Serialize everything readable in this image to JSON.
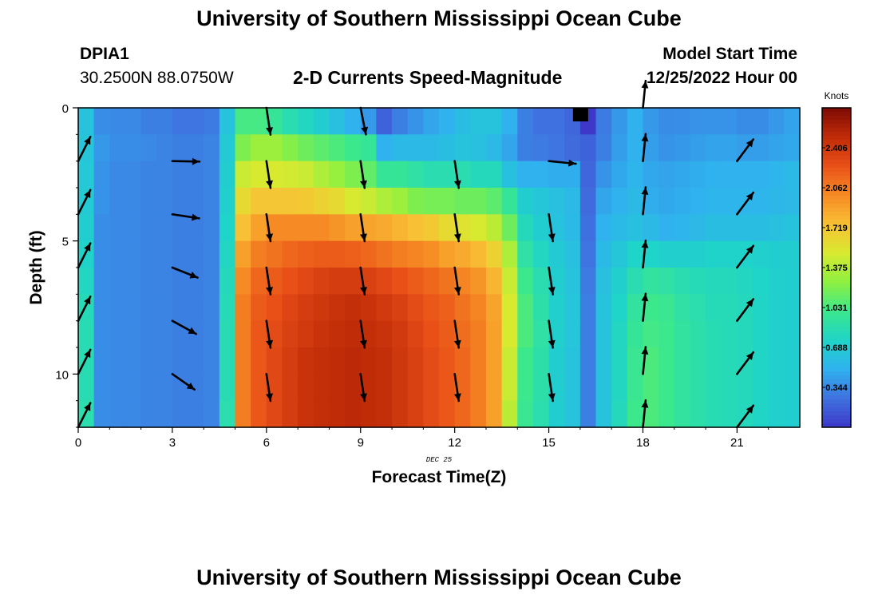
{
  "header": {
    "title": "University of Southern Mississippi Ocean Cube",
    "station_id": "DPIA1",
    "coordinates": "30.2500N  88.0750W",
    "subtitle": "2-D Currents Speed-Magnitude",
    "model_start_label": "Model Start Time",
    "model_start_value": "12/25/2022 Hour 00"
  },
  "footer": {
    "title": "University of Southern Mississippi Ocean Cube"
  },
  "chart_data": {
    "type": "heatmap",
    "xlabel": "Forecast Time(Z)",
    "ylabel": "Depth (ft)",
    "x_ticks": [
      0,
      3,
      6,
      9,
      12,
      15,
      18,
      21
    ],
    "y_ticks": [
      0,
      5,
      10
    ],
    "xlim": [
      0,
      23
    ],
    "ylim": [
      0,
      12
    ],
    "y_inverted": true,
    "date_label": "DEC 25",
    "colorbar": {
      "label": "Knots",
      "ticks": [
        2.406,
        2.062,
        1.719,
        1.375,
        1.031,
        0.688,
        0.344
      ],
      "range": [
        0,
        2.75
      ],
      "colors": [
        "#3d38c8",
        "#3f72e0",
        "#2fb2ee",
        "#1fd4c8",
        "#3ce88c",
        "#8ef040",
        "#d8ea30",
        "#f8c034",
        "#f68a24",
        "#e85018",
        "#c02c08",
        "#7c0a04"
      ]
    },
    "time_hours": [
      0,
      0.5,
      1,
      1.5,
      2,
      2.5,
      3,
      3.5,
      4,
      4.5,
      5,
      5.5,
      6,
      6.5,
      7,
      7.5,
      8,
      8.5,
      9,
      9.5,
      10,
      10.5,
      11,
      11.5,
      12,
      12.5,
      13,
      13.5,
      14,
      14.5,
      15,
      15.5,
      16,
      16.5,
      17,
      17.5,
      18,
      18.5,
      19,
      19.5,
      20,
      20.5,
      21,
      21.5,
      22,
      22.5
    ],
    "depth_levels_ft": [
      0,
      2,
      4,
      6,
      8,
      10,
      12
    ],
    "speed_knots": [
      [
        0.62,
        0.36,
        0.34,
        0.34,
        0.3,
        0.3,
        0.26,
        0.26,
        0.28,
        0.62,
        1.03,
        1.03,
        0.95,
        0.85,
        0.78,
        0.7,
        0.6,
        0.5,
        0.4,
        0.18,
        0.3,
        0.38,
        0.45,
        0.5,
        0.58,
        0.62,
        0.62,
        0.5,
        0.3,
        0.25,
        0.25,
        0.2,
        0.0,
        0.28,
        0.4,
        0.5,
        0.4,
        0.35,
        0.36,
        0.38,
        0.38,
        0.38,
        0.35,
        0.35,
        0.4,
        0.44
      ],
      [
        0.64,
        0.4,
        0.36,
        0.36,
        0.34,
        0.32,
        0.3,
        0.3,
        0.32,
        0.68,
        1.2,
        1.3,
        1.3,
        1.22,
        1.15,
        1.1,
        1.05,
        1.0,
        0.95,
        0.5,
        0.55,
        0.55,
        0.55,
        0.58,
        0.62,
        0.6,
        0.55,
        0.45,
        0.3,
        0.28,
        0.26,
        0.22,
        0.18,
        0.3,
        0.42,
        0.5,
        0.42,
        0.38,
        0.4,
        0.42,
        0.44,
        0.44,
        0.42,
        0.42,
        0.44,
        0.46
      ],
      [
        0.66,
        0.38,
        0.34,
        0.34,
        0.32,
        0.32,
        0.3,
        0.3,
        0.32,
        0.7,
        1.45,
        1.5,
        1.5,
        1.48,
        1.45,
        1.35,
        1.28,
        1.2,
        1.12,
        0.95,
        0.95,
        0.9,
        0.85,
        0.85,
        0.85,
        0.8,
        0.8,
        0.6,
        0.5,
        0.5,
        0.48,
        0.48,
        0.2,
        0.38,
        0.46,
        0.52,
        0.46,
        0.44,
        0.46,
        0.48,
        0.5,
        0.5,
        0.5,
        0.5,
        0.52,
        0.55
      ],
      [
        0.68,
        0.38,
        0.34,
        0.34,
        0.32,
        0.32,
        0.3,
        0.3,
        0.32,
        0.72,
        1.6,
        1.72,
        1.72,
        1.72,
        1.7,
        1.65,
        1.6,
        1.5,
        1.45,
        1.35,
        1.3,
        1.2,
        1.18,
        1.18,
        1.15,
        1.15,
        1.1,
        0.95,
        0.7,
        0.65,
        0.6,
        0.55,
        0.22,
        0.45,
        0.5,
        0.55,
        0.48,
        0.46,
        0.48,
        0.5,
        0.52,
        0.52,
        0.52,
        0.52,
        0.54,
        0.55
      ],
      [
        0.7,
        0.36,
        0.34,
        0.34,
        0.32,
        0.32,
        0.3,
        0.3,
        0.32,
        0.75,
        1.75,
        1.9,
        2.0,
        2.0,
        2.0,
        2.0,
        1.95,
        1.9,
        1.88,
        1.85,
        1.8,
        1.75,
        1.7,
        1.6,
        1.55,
        1.5,
        1.4,
        1.15,
        0.8,
        0.7,
        0.62,
        0.56,
        0.24,
        0.5,
        0.56,
        0.6,
        0.55,
        0.5,
        0.52,
        0.55,
        0.58,
        0.58,
        0.58,
        0.58,
        0.6,
        0.62
      ],
      [
        0.74,
        0.36,
        0.34,
        0.34,
        0.32,
        0.32,
        0.3,
        0.3,
        0.32,
        0.78,
        1.9,
        2.05,
        2.1,
        2.15,
        2.18,
        2.2,
        2.2,
        2.18,
        2.15,
        2.1,
        2.05,
        2.02,
        1.98,
        1.9,
        1.85,
        1.78,
        1.65,
        1.35,
        0.9,
        0.78,
        0.68,
        0.6,
        0.26,
        0.56,
        0.65,
        0.75,
        0.75,
        0.72,
        0.72,
        0.72,
        0.74,
        0.74,
        0.74,
        0.72,
        0.7,
        0.7
      ],
      [
        0.78,
        0.36,
        0.34,
        0.34,
        0.32,
        0.32,
        0.3,
        0.3,
        0.32,
        0.8,
        2.0,
        2.15,
        2.2,
        2.25,
        2.3,
        2.35,
        2.38,
        2.38,
        2.35,
        2.3,
        2.25,
        2.2,
        2.15,
        2.1,
        2.02,
        1.95,
        1.8,
        1.45,
        1.0,
        0.85,
        0.7,
        0.62,
        0.28,
        0.6,
        0.72,
        0.85,
        0.92,
        0.9,
        0.85,
        0.82,
        0.8,
        0.8,
        0.78,
        0.75,
        0.72,
        0.7
      ],
      [
        0.82,
        0.36,
        0.34,
        0.34,
        0.32,
        0.32,
        0.3,
        0.3,
        0.32,
        0.82,
        2.05,
        2.2,
        2.25,
        2.32,
        2.38,
        2.42,
        2.45,
        2.48,
        2.45,
        2.4,
        2.35,
        2.28,
        2.22,
        2.18,
        2.1,
        2.02,
        1.88,
        1.5,
        1.05,
        0.88,
        0.72,
        0.64,
        0.3,
        0.62,
        0.75,
        0.92,
        1.0,
        0.98,
        0.9,
        0.86,
        0.82,
        0.82,
        0.8,
        0.76,
        0.72,
        0.7
      ],
      [
        0.84,
        0.36,
        0.34,
        0.34,
        0.32,
        0.32,
        0.3,
        0.3,
        0.32,
        0.84,
        2.05,
        2.22,
        2.28,
        2.35,
        2.4,
        2.45,
        2.48,
        2.5,
        2.48,
        2.45,
        2.4,
        2.32,
        2.25,
        2.2,
        2.12,
        2.05,
        1.9,
        1.5,
        1.05,
        0.9,
        0.72,
        0.64,
        0.3,
        0.62,
        0.78,
        0.95,
        1.02,
        1.0,
        0.92,
        0.88,
        0.84,
        0.82,
        0.8,
        0.76,
        0.72,
        0.7
      ],
      [
        0.84,
        0.36,
        0.34,
        0.34,
        0.32,
        0.32,
        0.3,
        0.3,
        0.32,
        0.84,
        2.05,
        2.22,
        2.3,
        2.38,
        2.45,
        2.48,
        2.5,
        2.52,
        2.5,
        2.48,
        2.42,
        2.35,
        2.28,
        2.22,
        2.15,
        2.05,
        1.9,
        1.45,
        1.0,
        0.88,
        0.7,
        0.62,
        0.3,
        0.62,
        0.78,
        0.98,
        1.05,
        1.0,
        0.92,
        0.88,
        0.84,
        0.82,
        0.8,
        0.76,
        0.72,
        0.7
      ],
      [
        0.84,
        0.36,
        0.34,
        0.34,
        0.32,
        0.32,
        0.3,
        0.3,
        0.32,
        0.84,
        2.05,
        2.22,
        2.3,
        2.38,
        2.45,
        2.48,
        2.5,
        2.52,
        2.5,
        2.48,
        2.42,
        2.35,
        2.28,
        2.22,
        2.15,
        2.05,
        1.9,
        1.45,
        1.0,
        0.88,
        0.7,
        0.62,
        0.3,
        0.62,
        0.78,
        0.98,
        1.05,
        1.0,
        0.92,
        0.88,
        0.84,
        0.82,
        0.8,
        0.76,
        0.72,
        0.7
      ],
      [
        0.86,
        0.36,
        0.34,
        0.34,
        0.32,
        0.32,
        0.3,
        0.3,
        0.32,
        0.86,
        2.05,
        2.22,
        2.3,
        2.38,
        2.45,
        2.48,
        2.5,
        2.52,
        2.5,
        2.48,
        2.42,
        2.35,
        2.28,
        2.22,
        2.15,
        2.05,
        1.9,
        1.4,
        0.98,
        0.86,
        0.7,
        0.62,
        0.3,
        0.62,
        0.8,
        1.0,
        1.05,
        1.0,
        0.92,
        0.88,
        0.84,
        0.82,
        0.8,
        0.76,
        0.72,
        0.7
      ]
    ],
    "black_cell": {
      "time_hours": 16,
      "depth_ft": 0,
      "note": "missing data"
    },
    "vectors": [
      {
        "t": 0,
        "d": 2,
        "u": 0.35,
        "v": 0.7
      },
      {
        "t": 0,
        "d": 4,
        "u": 0.35,
        "v": 0.7
      },
      {
        "t": 0,
        "d": 6,
        "u": 0.35,
        "v": 0.7
      },
      {
        "t": 0,
        "d": 8,
        "u": 0.35,
        "v": 0.7
      },
      {
        "t": 0,
        "d": 10,
        "u": 0.35,
        "v": 0.7
      },
      {
        "t": 0,
        "d": 12,
        "u": 0.35,
        "v": 0.7
      },
      {
        "t": 3,
        "d": 2,
        "u": 1,
        "v": -0.02
      },
      {
        "t": 3,
        "d": 4,
        "u": 1,
        "v": -0.15
      },
      {
        "t": 3,
        "d": 6,
        "u": 1,
        "v": -0.4
      },
      {
        "t": 3,
        "d": 8,
        "u": 1,
        "v": -0.55
      },
      {
        "t": 3,
        "d": 10,
        "u": 1,
        "v": -0.7
      },
      {
        "t": 6,
        "d": 0,
        "u": 0.15,
        "v": -1
      },
      {
        "t": 6,
        "d": 2,
        "u": 0.15,
        "v": -1
      },
      {
        "t": 6,
        "d": 4,
        "u": 0.15,
        "v": -1
      },
      {
        "t": 6,
        "d": 6,
        "u": 0.15,
        "v": -1
      },
      {
        "t": 6,
        "d": 8,
        "u": 0.15,
        "v": -1
      },
      {
        "t": 6,
        "d": 10,
        "u": 0.15,
        "v": -1
      },
      {
        "t": 9,
        "d": 0,
        "u": 0.2,
        "v": -1
      },
      {
        "t": 9,
        "d": 2,
        "u": 0.15,
        "v": -1
      },
      {
        "t": 9,
        "d": 4,
        "u": 0.15,
        "v": -1
      },
      {
        "t": 9,
        "d": 6,
        "u": 0.15,
        "v": -1
      },
      {
        "t": 9,
        "d": 8,
        "u": 0.15,
        "v": -1
      },
      {
        "t": 9,
        "d": 10,
        "u": 0.15,
        "v": -1
      },
      {
        "t": 12,
        "d": 2,
        "u": 0.15,
        "v": -1
      },
      {
        "t": 12,
        "d": 4,
        "u": 0.15,
        "v": -1
      },
      {
        "t": 12,
        "d": 6,
        "u": 0.15,
        "v": -1
      },
      {
        "t": 12,
        "d": 8,
        "u": 0.15,
        "v": -1
      },
      {
        "t": 12,
        "d": 10,
        "u": 0.15,
        "v": -1
      },
      {
        "t": 15,
        "d": 2,
        "u": 1,
        "v": -0.1
      },
      {
        "t": 15,
        "d": 4,
        "u": 0.15,
        "v": -1
      },
      {
        "t": 15,
        "d": 6,
        "u": 0.15,
        "v": -1
      },
      {
        "t": 15,
        "d": 8,
        "u": 0.15,
        "v": -1
      },
      {
        "t": 15,
        "d": 10,
        "u": 0.15,
        "v": -1
      },
      {
        "t": 18,
        "d": 0,
        "u": 0.1,
        "v": 1
      },
      {
        "t": 18,
        "d": 2,
        "u": 0.1,
        "v": 1
      },
      {
        "t": 18,
        "d": 4,
        "u": 0.1,
        "v": 1
      },
      {
        "t": 18,
        "d": 6,
        "u": 0.1,
        "v": 1
      },
      {
        "t": 18,
        "d": 8,
        "u": 0.1,
        "v": 1
      },
      {
        "t": 18,
        "d": 10,
        "u": 0.1,
        "v": 1
      },
      {
        "t": 18,
        "d": 12,
        "u": 0.1,
        "v": 1
      },
      {
        "t": 21,
        "d": 2,
        "u": 0.6,
        "v": 0.8
      },
      {
        "t": 21,
        "d": 4,
        "u": 0.6,
        "v": 0.8
      },
      {
        "t": 21,
        "d": 6,
        "u": 0.6,
        "v": 0.8
      },
      {
        "t": 21,
        "d": 8,
        "u": 0.6,
        "v": 0.8
      },
      {
        "t": 21,
        "d": 10,
        "u": 0.6,
        "v": 0.8
      },
      {
        "t": 21,
        "d": 12,
        "u": 0.6,
        "v": 0.8
      }
    ]
  }
}
